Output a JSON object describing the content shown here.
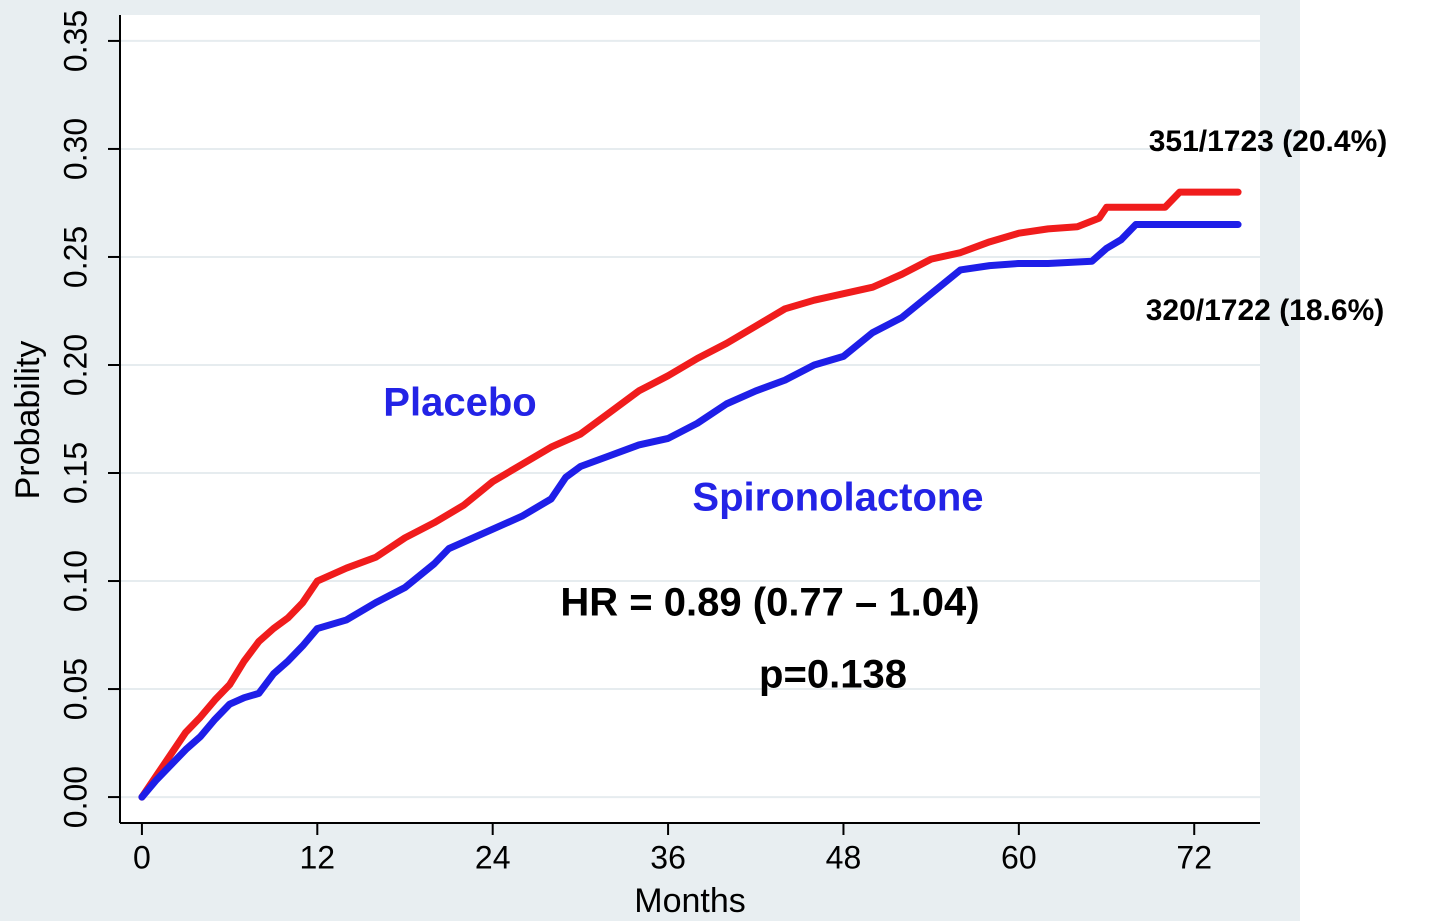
{
  "chart_data": {
    "type": "line",
    "x_label": "Months",
    "y_label": "Probability",
    "xlim": [
      -1.5,
      76.5
    ],
    "ylim": [
      -0.012,
      0.362
    ],
    "xticks": [
      0,
      12,
      24,
      36,
      48,
      60,
      72
    ],
    "yticks": [
      {
        "value": 0,
        "label": "0.00"
      },
      {
        "value": 0.05,
        "label": "0.05"
      },
      {
        "value": 0.1,
        "label": "0.10"
      },
      {
        "value": 0.15,
        "label": "0.15"
      },
      {
        "value": 0.2,
        "label": "0.20"
      },
      {
        "value": 0.25,
        "label": "0.25"
      },
      {
        "value": 0.3,
        "label": "0.30"
      },
      {
        "value": 0.35,
        "label": "0.35"
      }
    ],
    "grid": true,
    "label_color": "#2323e6",
    "series": [
      {
        "name": "Placebo",
        "color": "#f01c1c",
        "x": [
          0,
          1,
          2,
          3,
          4,
          5,
          6,
          7,
          8,
          9,
          10,
          11,
          12,
          14,
          16,
          18,
          20,
          22,
          24,
          26,
          28,
          30,
          32,
          34,
          36,
          38,
          40,
          42,
          44,
          46,
          48,
          50,
          52,
          54,
          56,
          58,
          60,
          62,
          64,
          65.5,
          66,
          70,
          71,
          75
        ],
        "values": [
          0,
          0.01,
          0.02,
          0.03,
          0.037,
          0.045,
          0.052,
          0.063,
          0.072,
          0.078,
          0.083,
          0.09,
          0.1,
          0.106,
          0.111,
          0.12,
          0.127,
          0.135,
          0.146,
          0.154,
          0.162,
          0.168,
          0.178,
          0.188,
          0.195,
          0.203,
          0.21,
          0.218,
          0.226,
          0.23,
          0.233,
          0.236,
          0.242,
          0.249,
          0.252,
          0.257,
          0.261,
          0.263,
          0.264,
          0.268,
          0.273,
          0.273,
          0.28,
          0.28
        ]
      },
      {
        "name": "Spironolactone",
        "color": "#1e1ee8",
        "x": [
          0,
          1,
          2,
          3,
          4,
          5,
          6,
          7,
          8,
          9,
          10,
          11,
          12,
          14,
          16,
          18,
          20,
          21,
          24,
          26,
          28,
          29,
          30,
          32,
          34,
          36,
          38,
          40,
          42,
          44,
          46,
          48,
          50,
          52,
          54,
          56,
          58,
          60,
          62,
          65,
          66,
          67,
          68,
          75
        ],
        "values": [
          0,
          0.008,
          0.015,
          0.022,
          0.028,
          0.036,
          0.043,
          0.046,
          0.048,
          0.057,
          0.063,
          0.07,
          0.078,
          0.082,
          0.09,
          0.097,
          0.108,
          0.115,
          0.124,
          0.13,
          0.138,
          0.148,
          0.153,
          0.158,
          0.163,
          0.166,
          0.173,
          0.182,
          0.188,
          0.193,
          0.2,
          0.204,
          0.215,
          0.222,
          0.233,
          0.244,
          0.246,
          0.247,
          0.247,
          0.248,
          0.254,
          0.258,
          0.265,
          0.265
        ]
      }
    ],
    "annotations": [
      "351/1723 (20.4%)",
      "320/1722 (18.6%)",
      "HR = 0.89 (0.77 – 1.04)",
      "p=0.138"
    ]
  }
}
